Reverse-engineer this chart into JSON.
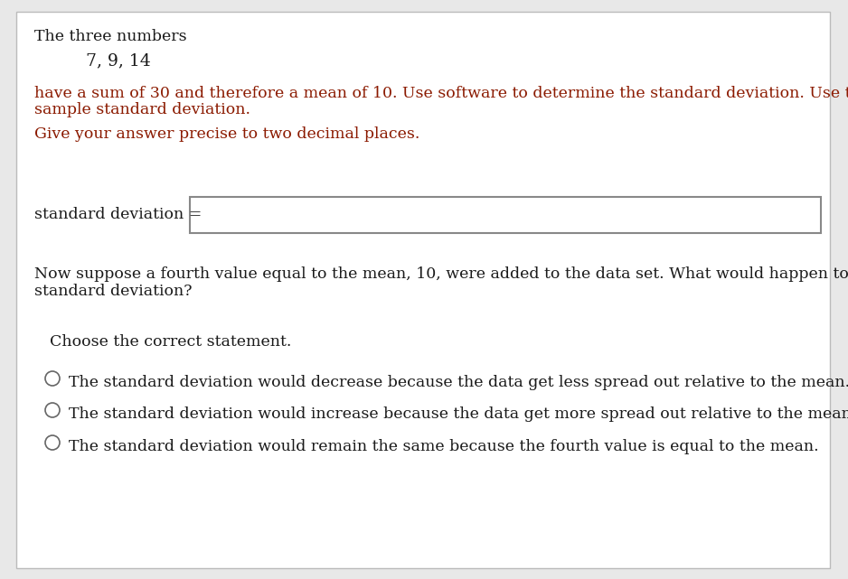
{
  "bg_color": "#e8e8e8",
  "content_bg": "#ffffff",
  "title_text": "The three numbers",
  "numbers_text": "7, 9, 14",
  "para1_line1": "have a sum of 30 and therefore a mean of 10. Use software to determine the standard deviation. Use the function for",
  "para1_line2": "sample standard deviation.",
  "para2": "Give your answer precise to two decimal places.",
  "label_text": "standard deviation =",
  "question_line1": "Now suppose a fourth value equal to the mean, 10, were added to the data set. What would happen to the",
  "question_line2": "standard deviation?",
  "choose_text": "Choose the correct statement.",
  "option1": "The standard deviation would decrease because the data get less spread out relative to the mean.",
  "option2": "The standard deviation would increase because the data get more spread out relative to the mean.",
  "option3": "The standard deviation would remain the same because the fourth value is equal to the mean.",
  "black_color": "#1a1a1a",
  "red_color": "#8b1a00",
  "box_border_color": "#888888",
  "radio_color": "#666666",
  "fs_main": 12.5,
  "fs_numbers": 13.5
}
